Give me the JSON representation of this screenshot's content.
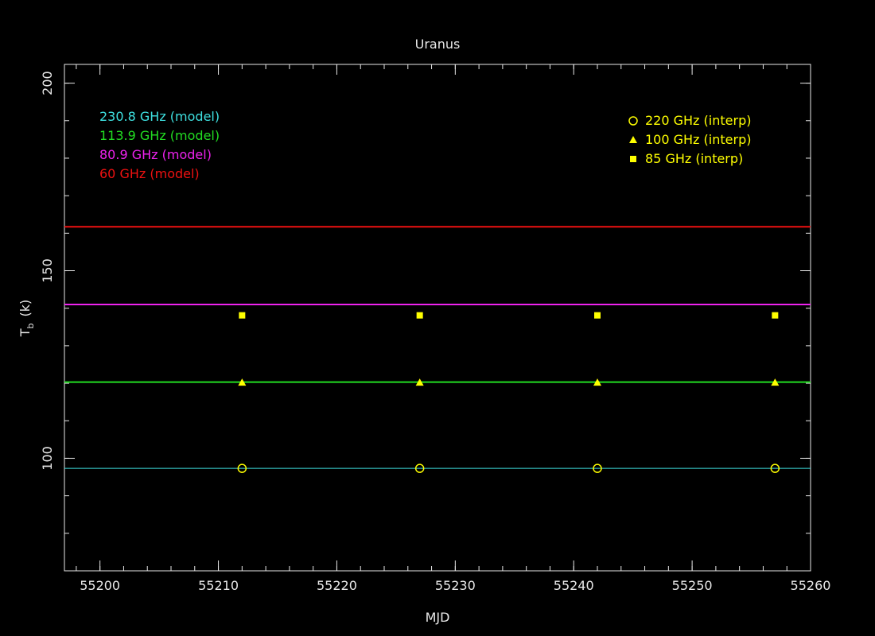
{
  "chart_data": {
    "type": "scatter",
    "title": "Uranus",
    "xlabel": "MJD",
    "ylabel": "T",
    "ylabel_sub": "b",
    "ylabel_unit": "(k)",
    "xlim": [
      55197,
      55260
    ],
    "ylim": [
      70,
      205
    ],
    "x_ticks": [
      55200,
      55210,
      55220,
      55230,
      55240,
      55250,
      55260
    ],
    "y_ticks": [
      100,
      150,
      200
    ],
    "x_minor_step": 2,
    "y_minor_step": 10,
    "lines": [
      {
        "name": "230.8 GHz (model)",
        "y": 97.3,
        "color": "#3ee0e0",
        "width": 1
      },
      {
        "name": "113.9 GHz (model)",
        "y": 120.3,
        "color": "#22dd22",
        "width": 2
      },
      {
        "name": "80.9 GHz (model)",
        "y": 141.0,
        "color": "#ee22ee",
        "width": 2
      },
      {
        "name": "60 GHz (model)",
        "y": 161.7,
        "color": "#ee1111",
        "width": 2
      }
    ],
    "series": [
      {
        "name": "220 GHz (interp)",
        "marker": "circle",
        "color": "#ffff00",
        "x": [
          55212,
          55227,
          55242,
          55257
        ],
        "y": [
          97.3,
          97.3,
          97.3,
          97.3
        ]
      },
      {
        "name": "100 GHz (interp)",
        "marker": "triangle",
        "color": "#ffff00",
        "x": [
          55212,
          55227,
          55242,
          55257
        ],
        "y": [
          120.2,
          120.2,
          120.2,
          120.2
        ]
      },
      {
        "name": "85 GHz (interp)",
        "marker": "square",
        "color": "#ffff00",
        "x": [
          55212,
          55227,
          55242,
          55257
        ],
        "y": [
          138.1,
          138.1,
          138.1,
          138.1
        ]
      }
    ],
    "legend_left_placement": "top-left",
    "legend_right_placement": "top-right",
    "grid": false
  }
}
